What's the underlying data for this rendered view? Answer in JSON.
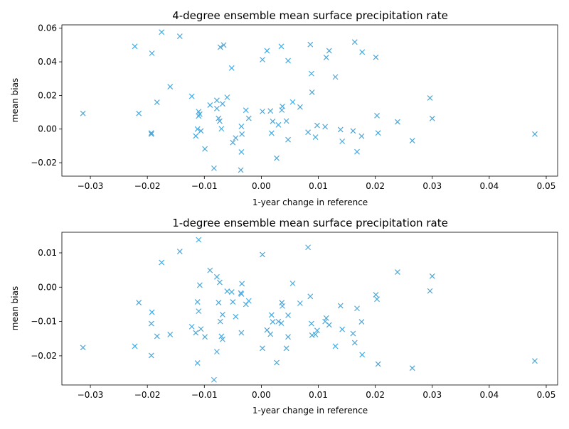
{
  "chart_data": [
    {
      "type": "scatter",
      "title": "4-degree ensemble mean surface precipitation rate",
      "xlabel": "1-year change in reference",
      "ylabel": "mean bias",
      "xlim": [
        -0.035,
        0.052
      ],
      "ylim": [
        -0.028,
        0.062
      ],
      "xticks": [
        -0.03,
        -0.02,
        -0.01,
        0.0,
        0.01,
        0.02,
        0.03,
        0.04,
        0.05
      ],
      "xtick_labels": [
        "−0.03",
        "−0.02",
        "−0.01",
        "0.00",
        "0.01",
        "0.02",
        "0.03",
        "0.04",
        "0.05"
      ],
      "yticks": [
        -0.02,
        0.0,
        0.02,
        0.04,
        0.06
      ],
      "ytick_labels": [
        "−0.02",
        "0.00",
        "0.02",
        "0.04",
        "0.06"
      ],
      "grid": false,
      "marker": "x",
      "color": "#4aa8dc",
      "series": [
        {
          "points": [
            [
              -0.0313,
              0.0093
            ],
            [
              -0.0222,
              0.0492
            ],
            [
              -0.0215,
              0.0093
            ],
            [
              -0.0193,
              -0.0023
            ],
            [
              -0.0193,
              -0.003
            ],
            [
              -0.0192,
              0.0451
            ],
            [
              -0.0183,
              0.0159
            ],
            [
              -0.0175,
              0.0577
            ],
            [
              -0.016,
              0.0252
            ],
            [
              -0.0143,
              0.0552
            ],
            [
              -0.0122,
              0.0195
            ],
            [
              -0.0115,
              -0.0041
            ],
            [
              -0.0112,
              0.0
            ],
            [
              -0.011,
              0.0078
            ],
            [
              -0.011,
              0.0104
            ],
            [
              -0.0108,
              0.0089
            ],
            [
              -0.0106,
              -0.0011
            ],
            [
              -0.0099,
              -0.0118
            ],
            [
              -0.009,
              0.0143
            ],
            [
              -0.0083,
              -0.0233
            ],
            [
              -0.0078,
              0.0171
            ],
            [
              -0.0078,
              0.0122
            ],
            [
              -0.0075,
              0.0064
            ],
            [
              -0.0073,
              0.0047
            ],
            [
              -0.0072,
              0.0487
            ],
            [
              -0.007,
              0.0002
            ],
            [
              -0.0068,
              0.015
            ],
            [
              -0.0066,
              0.05
            ],
            [
              -0.006,
              0.0189
            ],
            [
              -0.0052,
              0.0363
            ],
            [
              -0.005,
              -0.008
            ],
            [
              -0.0045,
              -0.0053
            ],
            [
              -0.0036,
              -0.0244
            ],
            [
              -0.0035,
              0.0016
            ],
            [
              -0.0035,
              -0.0136
            ],
            [
              -0.0034,
              -0.003
            ],
            [
              -0.0027,
              0.0112
            ],
            [
              -0.0022,
              0.0064
            ],
            [
              0.0002,
              0.0413
            ],
            [
              0.0002,
              0.0105
            ],
            [
              0.001,
              0.0466
            ],
            [
              0.0016,
              0.0108
            ],
            [
              0.0018,
              -0.0024
            ],
            [
              0.002,
              0.0046
            ],
            [
              0.0027,
              -0.0173
            ],
            [
              0.003,
              0.0025
            ],
            [
              0.0035,
              0.0492
            ],
            [
              0.0036,
              0.0113
            ],
            [
              0.0037,
              0.0135
            ],
            [
              0.0044,
              0.0048
            ],
            [
              0.0047,
              -0.0063
            ],
            [
              0.0047,
              0.0407
            ],
            [
              0.0055,
              0.0161
            ],
            [
              0.0068,
              0.0131
            ],
            [
              0.0082,
              -0.0019
            ],
            [
              0.0086,
              0.0503
            ],
            [
              0.0088,
              0.033
            ],
            [
              0.0089,
              0.0219
            ],
            [
              0.0095,
              -0.0048
            ],
            [
              0.0098,
              0.0022
            ],
            [
              0.0112,
              0.0014
            ],
            [
              0.0114,
              0.0426
            ],
            [
              0.0119,
              0.0466
            ],
            [
              0.013,
              0.031
            ],
            [
              0.0139,
              -0.0003
            ],
            [
              0.0142,
              -0.0073
            ],
            [
              0.0161,
              -0.0011
            ],
            [
              0.0164,
              0.0518
            ],
            [
              0.0168,
              -0.0135
            ],
            [
              0.0176,
              -0.0042
            ],
            [
              0.0177,
              0.0458
            ],
            [
              0.0201,
              0.0427
            ],
            [
              0.0203,
              0.008
            ],
            [
              0.0205,
              -0.0023
            ],
            [
              0.0239,
              0.0043
            ],
            [
              0.0265,
              -0.0069
            ],
            [
              0.0296,
              0.0185
            ],
            [
              0.03,
              0.0063
            ],
            [
              0.048,
              -0.003
            ]
          ]
        }
      ]
    },
    {
      "type": "scatter",
      "title": "1-degree ensemble mean surface precipitation rate",
      "xlabel": "1-year change in reference",
      "ylabel": "mean bias",
      "xlim": [
        -0.035,
        0.052
      ],
      "ylim": [
        -0.0285,
        0.016
      ],
      "xticks": [
        -0.03,
        -0.02,
        -0.01,
        0.0,
        0.01,
        0.02,
        0.03,
        0.04,
        0.05
      ],
      "xtick_labels": [
        "−0.03",
        "−0.02",
        "−0.01",
        "0.00",
        "0.01",
        "0.02",
        "0.03",
        "0.04",
        "0.05"
      ],
      "yticks": [
        -0.02,
        -0.01,
        0.0,
        0.01
      ],
      "ytick_labels": [
        "−0.02",
        "−0.01",
        "0.00",
        "0.01"
      ],
      "grid": false,
      "marker": "x",
      "color": "#4aa8dc",
      "series": [
        {
          "points": [
            [
              -0.0313,
              -0.0176
            ],
            [
              -0.0222,
              -0.0172
            ],
            [
              -0.0215,
              -0.0045
            ],
            [
              -0.0193,
              -0.0106
            ],
            [
              -0.0193,
              -0.0199
            ],
            [
              -0.0192,
              -0.0073
            ],
            [
              -0.0183,
              -0.0143
            ],
            [
              -0.0175,
              0.0072
            ],
            [
              -0.016,
              -0.0138
            ],
            [
              -0.0143,
              0.0104
            ],
            [
              -0.0122,
              -0.0115
            ],
            [
              -0.0115,
              -0.0133
            ],
            [
              -0.0112,
              -0.0043
            ],
            [
              -0.0112,
              -0.0221
            ],
            [
              -0.011,
              -0.007
            ],
            [
              -0.011,
              0.0138
            ],
            [
              -0.0108,
              0.0006
            ],
            [
              -0.0106,
              -0.0122
            ],
            [
              -0.0099,
              -0.0145
            ],
            [
              -0.009,
              0.0049
            ],
            [
              -0.0083,
              -0.027
            ],
            [
              -0.0078,
              0.003
            ],
            [
              -0.0078,
              -0.0188
            ],
            [
              -0.0075,
              -0.0045
            ],
            [
              -0.0073,
              0.0014
            ],
            [
              -0.0072,
              -0.01
            ],
            [
              -0.007,
              -0.0143
            ],
            [
              -0.0068,
              -0.008
            ],
            [
              -0.0068,
              -0.0152
            ],
            [
              -0.006,
              -0.0012
            ],
            [
              -0.0052,
              -0.0014
            ],
            [
              -0.005,
              -0.0043
            ],
            [
              -0.0045,
              -0.0086
            ],
            [
              -0.0036,
              -0.0017
            ],
            [
              -0.0035,
              -0.002
            ],
            [
              -0.0035,
              -0.0133
            ],
            [
              -0.0034,
              0.001
            ],
            [
              -0.0027,
              -0.005
            ],
            [
              -0.0022,
              -0.004
            ],
            [
              0.0002,
              0.0095
            ],
            [
              0.0002,
              -0.0178
            ],
            [
              0.001,
              -0.0125
            ],
            [
              0.0016,
              -0.0137
            ],
            [
              0.0018,
              -0.0081
            ],
            [
              0.002,
              -0.0101
            ],
            [
              0.0027,
              -0.022
            ],
            [
              0.003,
              -0.01
            ],
            [
              0.0035,
              -0.0105
            ],
            [
              0.0036,
              -0.0045
            ],
            [
              0.0037,
              -0.0055
            ],
            [
              0.0044,
              -0.0178
            ],
            [
              0.0047,
              -0.0082
            ],
            [
              0.0047,
              -0.0145
            ],
            [
              0.0055,
              0.0011
            ],
            [
              0.0068,
              -0.0047
            ],
            [
              0.0082,
              0.0116
            ],
            [
              0.0086,
              -0.0027
            ],
            [
              0.0088,
              -0.0106
            ],
            [
              0.0089,
              -0.014
            ],
            [
              0.0095,
              -0.0138
            ],
            [
              0.0098,
              -0.0126
            ],
            [
              0.0112,
              -0.01
            ],
            [
              0.0114,
              -0.009
            ],
            [
              0.0119,
              -0.011
            ],
            [
              0.013,
              -0.0172
            ],
            [
              0.0139,
              -0.0054
            ],
            [
              0.0142,
              -0.0123
            ],
            [
              0.0161,
              -0.0135
            ],
            [
              0.0164,
              -0.0162
            ],
            [
              0.0168,
              -0.0062
            ],
            [
              0.0176,
              -0.0101
            ],
            [
              0.0177,
              -0.0197
            ],
            [
              0.0201,
              -0.0022
            ],
            [
              0.0203,
              -0.0035
            ],
            [
              0.0205,
              -0.0224
            ],
            [
              0.0239,
              0.0044
            ],
            [
              0.0265,
              -0.0236
            ],
            [
              0.0296,
              -0.0011
            ],
            [
              0.03,
              0.0032
            ],
            [
              0.048,
              -0.0215
            ]
          ]
        }
      ]
    }
  ]
}
